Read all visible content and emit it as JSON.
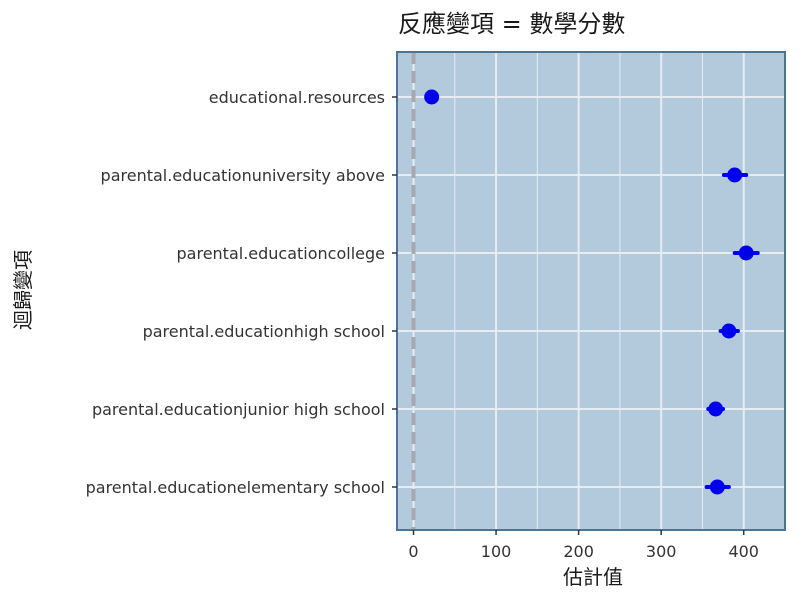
{
  "chart_data": {
    "type": "scatter",
    "subtype": "coefficient-plot",
    "title": "反應變項 = 數學分數",
    "xlabel": "估計值",
    "ylabel": "迴歸變項",
    "xlim": [
      -20,
      450
    ],
    "x_ticks": [
      0,
      100,
      200,
      300,
      400
    ],
    "categories": [
      "educational.resources",
      "parental.educationuniversity above",
      "parental.educationcollege",
      "parental.educationhigh school",
      "parental.educationjunior high school",
      "parental.educationelementary school"
    ],
    "estimates": [
      22,
      389,
      403,
      382,
      366,
      368
    ],
    "ci_low": [
      20,
      376,
      389,
      372,
      357,
      355
    ],
    "ci_high": [
      24,
      403,
      417,
      393,
      375,
      382
    ],
    "reference_line": 0,
    "grid": true,
    "colors": {
      "panel_background": "#b3cadd",
      "panel_border": "#4d7494",
      "grid": "#e6ecf2",
      "point": "#0000ee",
      "reference_line": "#a8a8b0"
    }
  }
}
